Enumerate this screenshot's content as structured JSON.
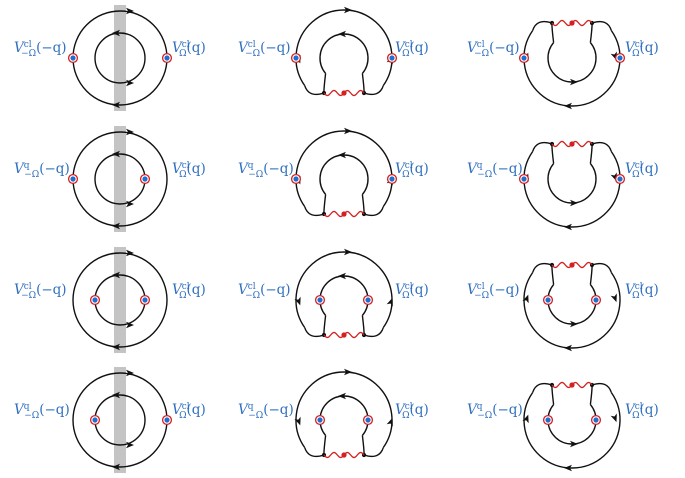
{
  "colors": {
    "line": "#111111",
    "vertex_fill": "#1e6fd0",
    "vertex_ring": "#d42020",
    "propagator": "#d42020",
    "band": "#c4c4c4",
    "label": "#2f6fbf"
  },
  "labels": {
    "left_base": "V",
    "left_arg": "(−q)",
    "left_sub": "−Ω",
    "right_base": "V",
    "right_arg": "(q)",
    "right_sub": "Ω"
  },
  "rows": [
    {
      "left_sup": "cl",
      "right_sup": "cl"
    },
    {
      "left_sup": "q",
      "right_sup": "cl"
    },
    {
      "left_sup": "cl",
      "right_sup": "cl"
    },
    {
      "left_sup": "q",
      "right_sup": "cl"
    }
  ],
  "columns": [
    {
      "type": "ring-band"
    },
    {
      "type": "horseshoe-bottom"
    },
    {
      "type": "horseshoe-top"
    }
  ]
}
